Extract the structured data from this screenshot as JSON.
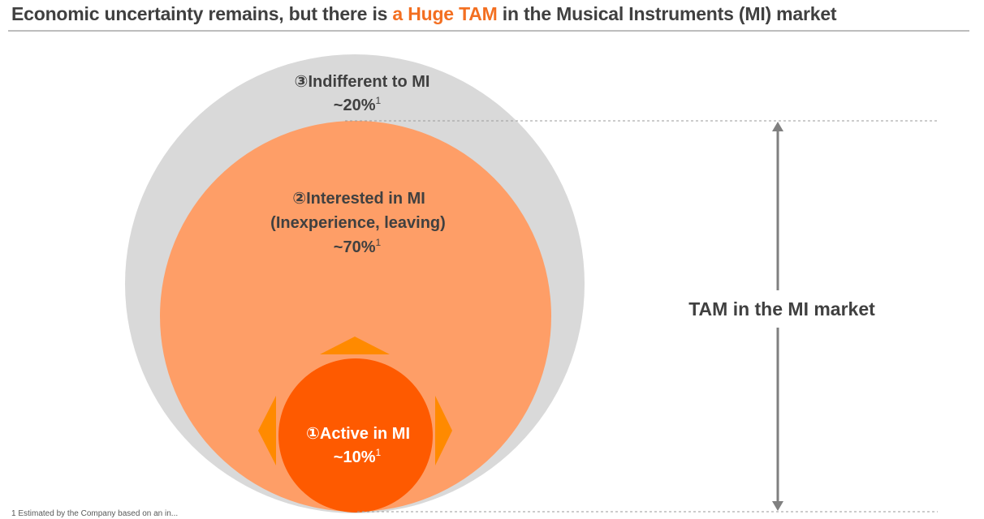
{
  "title": {
    "prefix": "Economic uncertainty remains, but there is ",
    "highlight": "a Huge TAM",
    "suffix": " in the Musical Instruments (MI) market"
  },
  "segments": {
    "indifferent": {
      "label": "③Indifferent to MI",
      "value": "~20%",
      "note": "1",
      "color": "#d9d9d9"
    },
    "interested": {
      "label": "②Interested in MI",
      "sublabel": "(Inexperience, leaving)",
      "value": "~70%",
      "note": "1",
      "color": "#fe9e67"
    },
    "active": {
      "label": "①Active in MI",
      "value": "~10%",
      "note": "1",
      "color": "#fe5a00"
    }
  },
  "tam": {
    "label": "TAM in the MI market"
  },
  "footnote": "1 Estimated by the Company based on an in..."
}
